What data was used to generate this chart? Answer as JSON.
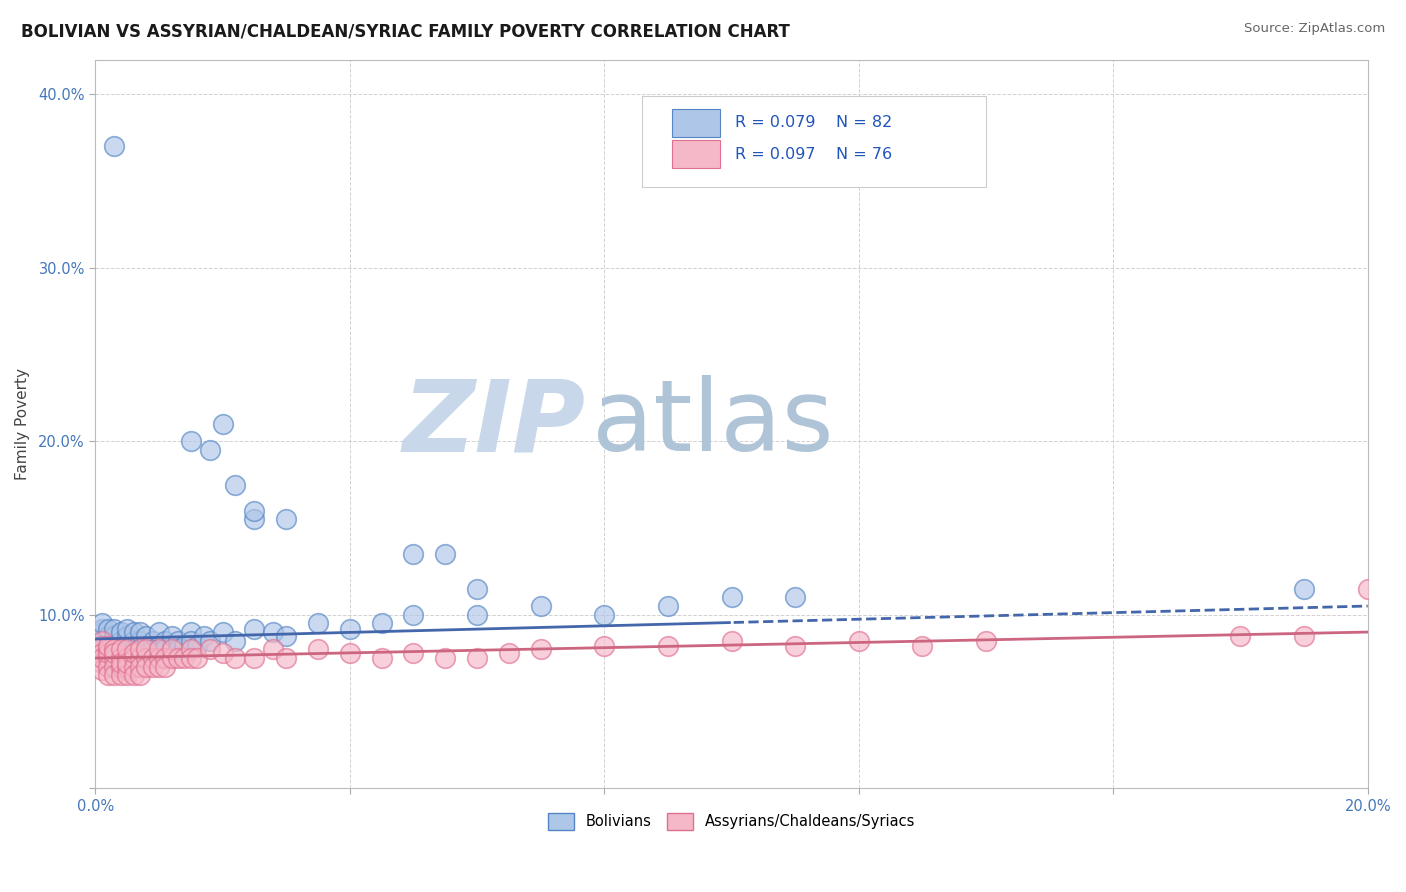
{
  "title": "BOLIVIAN VS ASSYRIAN/CHALDEAN/SYRIAC FAMILY POVERTY CORRELATION CHART",
  "source": "Source: ZipAtlas.com",
  "ylabel": "Family Poverty",
  "xlim": [
    0.0,
    0.2
  ],
  "ylim": [
    0.0,
    0.42
  ],
  "xticks": [
    0.0,
    0.04,
    0.08,
    0.12,
    0.16,
    0.2
  ],
  "xticklabels": [
    "0.0%",
    "",
    "",
    "",
    "",
    "20.0%"
  ],
  "yticks": [
    0.0,
    0.1,
    0.2,
    0.3,
    0.4
  ],
  "yticklabels": [
    "",
    "10.0%",
    "20.0%",
    "30.0%",
    "40.0%"
  ],
  "legend_r_blue": "R = 0.079",
  "legend_n_blue": "N = 82",
  "legend_r_pink": "R = 0.097",
  "legend_n_pink": "N = 76",
  "blue_fill": "#aec6e8",
  "blue_edge": "#5585c5",
  "pink_fill": "#f5b8c8",
  "pink_edge": "#e07090",
  "blue_line_color": "#4466aa",
  "pink_line_color": "#cc6680",
  "watermark_zip": "ZIP",
  "watermark_atlas": "atlas",
  "watermark_color_zip": "#c8d8e8",
  "watermark_color_atlas": "#b0c8d8",
  "background_color": "#ffffff",
  "grid_color": "#cccccc",
  "blue_x": [
    0.001,
    0.001,
    0.001,
    0.001,
    0.001,
    0.002,
    0.002,
    0.002,
    0.002,
    0.002,
    0.002,
    0.003,
    0.003,
    0.003,
    0.003,
    0.003,
    0.003,
    0.004,
    0.004,
    0.004,
    0.004,
    0.004,
    0.005,
    0.005,
    0.005,
    0.005,
    0.005,
    0.006,
    0.006,
    0.006,
    0.006,
    0.007,
    0.007,
    0.007,
    0.007,
    0.008,
    0.008,
    0.008,
    0.009,
    0.009,
    0.01,
    0.01,
    0.01,
    0.011,
    0.011,
    0.012,
    0.012,
    0.013,
    0.013,
    0.014,
    0.015,
    0.015,
    0.016,
    0.017,
    0.018,
    0.02,
    0.022,
    0.025,
    0.028,
    0.03,
    0.035,
    0.04,
    0.045,
    0.05,
    0.06,
    0.07,
    0.08,
    0.09,
    0.1,
    0.11,
    0.025,
    0.03,
    0.05,
    0.055,
    0.06,
    0.015,
    0.018,
    0.02,
    0.022,
    0.025,
    0.19,
    0.003
  ],
  "blue_y": [
    0.09,
    0.085,
    0.092,
    0.08,
    0.095,
    0.088,
    0.082,
    0.078,
    0.092,
    0.075,
    0.07,
    0.088,
    0.082,
    0.078,
    0.092,
    0.075,
    0.07,
    0.085,
    0.09,
    0.078,
    0.082,
    0.072,
    0.088,
    0.082,
    0.078,
    0.092,
    0.068,
    0.085,
    0.08,
    0.09,
    0.075,
    0.085,
    0.08,
    0.09,
    0.075,
    0.082,
    0.088,
    0.078,
    0.085,
    0.08,
    0.082,
    0.09,
    0.078,
    0.085,
    0.08,
    0.082,
    0.088,
    0.085,
    0.08,
    0.082,
    0.09,
    0.085,
    0.082,
    0.088,
    0.085,
    0.09,
    0.085,
    0.092,
    0.09,
    0.088,
    0.095,
    0.092,
    0.095,
    0.1,
    0.1,
    0.105,
    0.1,
    0.105,
    0.11,
    0.11,
    0.155,
    0.155,
    0.135,
    0.135,
    0.115,
    0.2,
    0.195,
    0.21,
    0.175,
    0.16,
    0.115,
    0.37
  ],
  "pink_x": [
    0.001,
    0.001,
    0.001,
    0.001,
    0.001,
    0.001,
    0.002,
    0.002,
    0.002,
    0.002,
    0.002,
    0.002,
    0.003,
    0.003,
    0.003,
    0.003,
    0.003,
    0.004,
    0.004,
    0.004,
    0.004,
    0.004,
    0.005,
    0.005,
    0.005,
    0.005,
    0.005,
    0.006,
    0.006,
    0.006,
    0.006,
    0.007,
    0.007,
    0.007,
    0.007,
    0.008,
    0.008,
    0.008,
    0.009,
    0.009,
    0.01,
    0.01,
    0.01,
    0.011,
    0.011,
    0.012,
    0.012,
    0.013,
    0.014,
    0.015,
    0.015,
    0.016,
    0.018,
    0.02,
    0.022,
    0.025,
    0.028,
    0.03,
    0.035,
    0.04,
    0.045,
    0.05,
    0.055,
    0.06,
    0.065,
    0.07,
    0.08,
    0.09,
    0.1,
    0.11,
    0.12,
    0.13,
    0.14,
    0.18,
    0.19,
    0.2
  ],
  "pink_y": [
    0.085,
    0.082,
    0.078,
    0.072,
    0.068,
    0.075,
    0.08,
    0.075,
    0.07,
    0.065,
    0.078,
    0.082,
    0.075,
    0.08,
    0.07,
    0.065,
    0.078,
    0.075,
    0.07,
    0.065,
    0.08,
    0.072,
    0.075,
    0.07,
    0.065,
    0.08,
    0.072,
    0.075,
    0.07,
    0.065,
    0.078,
    0.075,
    0.07,
    0.08,
    0.065,
    0.075,
    0.07,
    0.08,
    0.075,
    0.07,
    0.075,
    0.07,
    0.08,
    0.075,
    0.07,
    0.075,
    0.08,
    0.075,
    0.075,
    0.08,
    0.075,
    0.075,
    0.08,
    0.078,
    0.075,
    0.075,
    0.08,
    0.075,
    0.08,
    0.078,
    0.075,
    0.078,
    0.075,
    0.075,
    0.078,
    0.08,
    0.082,
    0.082,
    0.085,
    0.082,
    0.085,
    0.082,
    0.085,
    0.088,
    0.088,
    0.115
  ]
}
